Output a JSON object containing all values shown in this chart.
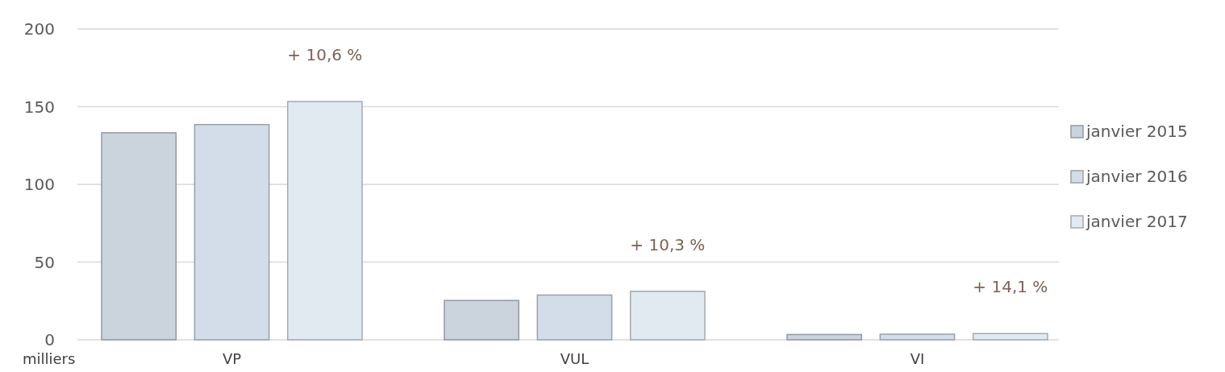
{
  "chart_data": {
    "type": "bar",
    "categories": [
      "VP",
      "VUL",
      "VI"
    ],
    "series": [
      {
        "name": "janvier 2015",
        "color": "#cbd3dc",
        "values": [
          133.2,
          25.3,
          3.4
        ]
      },
      {
        "name": "janvier 2016",
        "color": "#d3dde9",
        "values": [
          138.5,
          28.8,
          3.6
        ]
      },
      {
        "name": "janvier 2017",
        "color": "#e1e9f1",
        "values": [
          153.3,
          31.2,
          4.0
        ]
      }
    ],
    "ylim": [
      0,
      200
    ],
    "yticks": [
      0,
      50,
      100,
      150,
      200
    ],
    "grid": "y",
    "legend": "right",
    "annotations": [
      "milliers",
      "+ 10,6 %",
      "+ 10,3 %",
      "+ 14,1 %"
    ]
  }
}
